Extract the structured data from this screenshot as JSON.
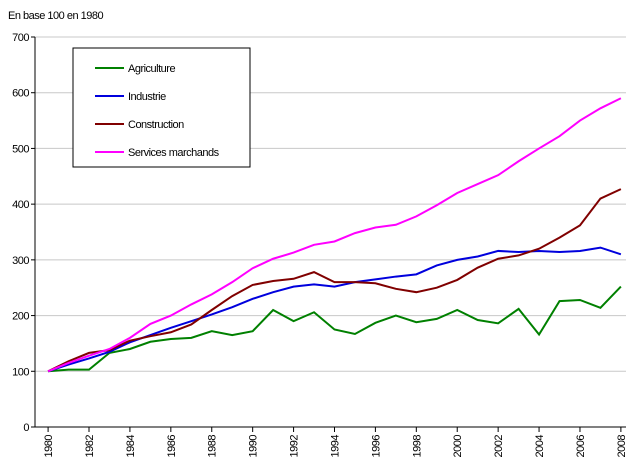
{
  "chart_data": {
    "type": "line",
    "title": "En base 100 en 1980",
    "x": [
      1980,
      1981,
      1982,
      1983,
      1984,
      1985,
      1986,
      1987,
      1988,
      1989,
      1990,
      1991,
      1992,
      1993,
      1994,
      1995,
      1996,
      1997,
      1998,
      1999,
      2000,
      2001,
      2002,
      2003,
      2004,
      2005,
      2006,
      2007,
      2008
    ],
    "series": [
      {
        "name": "Agriculture",
        "color": "#008000",
        "values": [
          100,
          103,
          103,
          133,
          140,
          153,
          158,
          160,
          172,
          165,
          172,
          210,
          190,
          206,
          175,
          167,
          187,
          200,
          188,
          194,
          210,
          192,
          186,
          212,
          166,
          226,
          228,
          214,
          252
        ]
      },
      {
        "name": "Industrie",
        "color": "#0000dd",
        "values": [
          100,
          112,
          123,
          135,
          152,
          165,
          178,
          190,
          202,
          215,
          230,
          242,
          252,
          256,
          252,
          260,
          265,
          270,
          274,
          290,
          300,
          306,
          316,
          314,
          316,
          314,
          316,
          322,
          310
        ]
      },
      {
        "name": "Construction",
        "color": "#800000",
        "values": [
          100,
          118,
          133,
          138,
          155,
          163,
          170,
          184,
          210,
          235,
          255,
          262,
          266,
          278,
          260,
          260,
          258,
          248,
          242,
          250,
          264,
          286,
          302,
          308,
          320,
          340,
          362,
          410,
          427
        ]
      },
      {
        "name": "Services marchands",
        "color": "#ff00ff",
        "values": [
          100,
          115,
          128,
          140,
          160,
          185,
          200,
          220,
          238,
          260,
          285,
          302,
          313,
          327,
          333,
          348,
          358,
          363,
          378,
          398,
          420,
          436,
          452,
          477,
          500,
          522,
          550,
          572,
          590
        ]
      }
    ],
    "xlim": [
      1979.36,
      2008.25
    ],
    "xticks": [
      1980,
      1982,
      1984,
      1986,
      1988,
      1990,
      1992,
      1994,
      1996,
      1998,
      2000,
      2002,
      2004,
      2006,
      2008
    ],
    "ylim": [
      0,
      700
    ],
    "yticks": [
      0,
      100,
      200,
      300,
      400,
      500,
      600,
      700
    ],
    "grid": true,
    "legend": "upper-left"
  }
}
